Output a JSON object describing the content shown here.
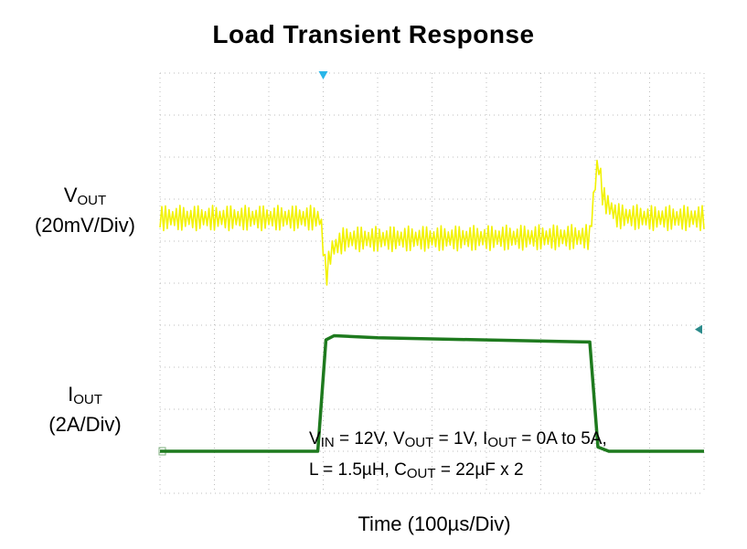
{
  "title": "Load Transient Response",
  "vout_label": {
    "name": "V",
    "sub": "OUT",
    "scale": "(20mV/Div)"
  },
  "iout_label": {
    "name": "I",
    "sub": "OUT",
    "scale": "(2A/Div)"
  },
  "xlabel": "Time  (100µs/Div)",
  "conditions": {
    "line1": [
      {
        "t": "V"
      },
      {
        "s": "IN"
      },
      {
        "t": " = 12V, V"
      },
      {
        "s": "OUT"
      },
      {
        "t": " = 1V, I"
      },
      {
        "s": "OUT"
      },
      {
        "t": " = 0A to 5A,"
      }
    ],
    "line2": [
      {
        "t": "L = 1.5µH, C"
      },
      {
        "s": "OUT"
      },
      {
        "t": " = 22µF x 2"
      }
    ]
  },
  "colors": {
    "vout_trace": "#f2f200",
    "iout_trace": "#1e7a1e",
    "grid": "#bdbdbd",
    "trigger_marker": "#29b6e8",
    "ref_marker": "#2a8a8a"
  },
  "chart_data": {
    "type": "line",
    "x_unit": "division (100µs/Div)",
    "xlim": [
      0,
      10
    ],
    "divisions_y": 10,
    "grid": true,
    "series": [
      {
        "name": "VOUT",
        "unit": "division (20mV/Div)",
        "x": [
          0,
          2.95,
          3.0,
          3.05,
          3.15,
          3.4,
          4.0,
          7.9,
          7.95,
          8.05,
          8.15,
          8.4,
          9.0,
          10
        ],
        "y": [
          6.55,
          6.55,
          5.9,
          5.15,
          5.8,
          6.05,
          6.05,
          6.1,
          6.8,
          7.95,
          7.0,
          6.6,
          6.55,
          6.55
        ],
        "ripple": 0.3
      },
      {
        "name": "IOUT",
        "unit": "division (2A/Div)",
        "x": [
          0,
          2.9,
          3.05,
          3.2,
          4.0,
          7.9,
          8.05,
          8.25,
          9.0,
          10
        ],
        "y": [
          1.0,
          1.0,
          3.65,
          3.75,
          3.7,
          3.6,
          1.1,
          1.0,
          1.0,
          1.0
        ]
      }
    ]
  }
}
